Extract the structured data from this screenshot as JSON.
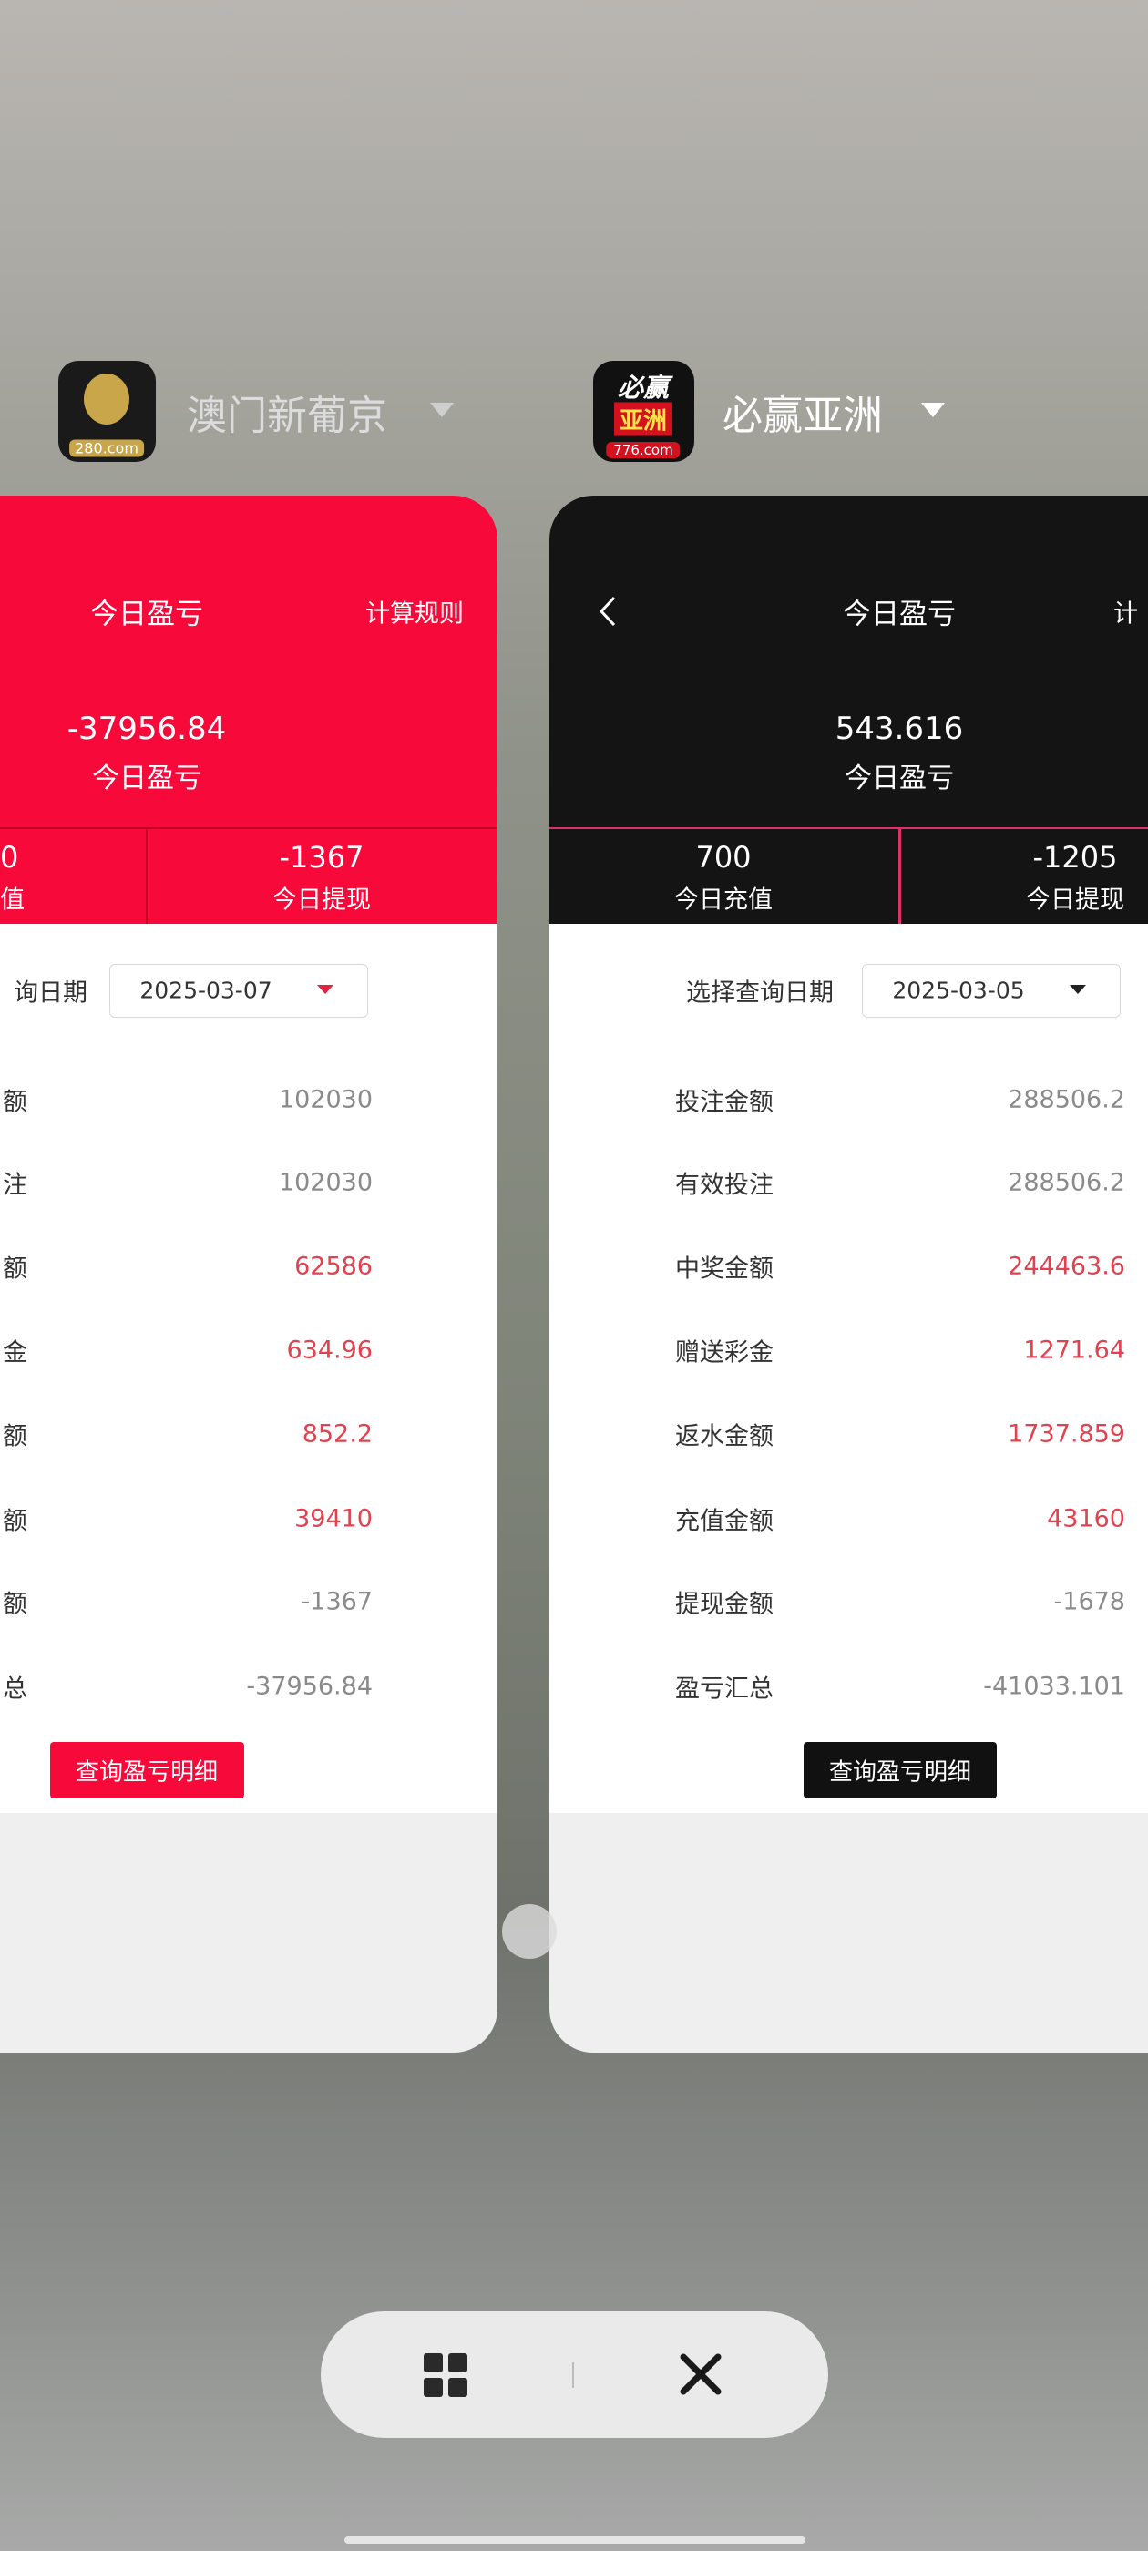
{
  "apps": [
    {
      "name": "澳门新葡京",
      "logo_text": "280.com",
      "header": {
        "title": "今日盈亏",
        "rule": "计算规则",
        "amount": "-37956.84",
        "amount_label": "今日盈亏"
      },
      "stats": [
        {
          "value": "0",
          "label": "值"
        },
        {
          "value": "-1367",
          "label": "今日提现"
        }
      ],
      "date_label": "询日期",
      "date": "2025-03-07",
      "rows": [
        {
          "label": "额",
          "value": "102030",
          "color": "#8a8a8a"
        },
        {
          "label": "注",
          "value": "102030",
          "color": "#8a8a8a"
        },
        {
          "label": "额",
          "value": "62586",
          "color": "#e0434f"
        },
        {
          "label": "金",
          "value": "634.96",
          "color": "#e0434f"
        },
        {
          "label": "额",
          "value": "852.2",
          "color": "#e0434f"
        },
        {
          "label": "额",
          "value": "39410",
          "color": "#e0434f"
        },
        {
          "label": "额",
          "value": "-1367",
          "color": "#8a8a8a"
        },
        {
          "label": "总",
          "value": "-37956.84",
          "color": "#8a8a8a"
        }
      ],
      "button": "查询盈亏明细"
    },
    {
      "name": "必赢亚洲",
      "logo_text": "776.com",
      "logo_title": [
        "必赢",
        "亚洲"
      ],
      "header": {
        "title": "今日盈亏",
        "rule": "计",
        "amount": "543.616",
        "amount_label": "今日盈亏"
      },
      "stats": [
        {
          "value": "700",
          "label": "今日充值"
        },
        {
          "value": "-1205",
          "label": "今日提现"
        }
      ],
      "date_label": "选择查询日期",
      "date": "2025-03-05",
      "rows": [
        {
          "label": "投注金额",
          "value": "288506.2",
          "color": "#8a8a8a"
        },
        {
          "label": "有效投注",
          "value": "288506.2",
          "color": "#8a8a8a"
        },
        {
          "label": "中奖金额",
          "value": "244463.6",
          "color": "#e0434f"
        },
        {
          "label": "赠送彩金",
          "value": "1271.64",
          "color": "#e0434f"
        },
        {
          "label": "返水金额",
          "value": "1737.859",
          "color": "#e0434f"
        },
        {
          "label": "充值金额",
          "value": "43160",
          "color": "#e0434f"
        },
        {
          "label": "提现金额",
          "value": "-1678",
          "color": "#8a8a8a"
        },
        {
          "label": "盈亏汇总",
          "value": "-41033.101",
          "color": "#8a8a8a"
        }
      ],
      "button": "查询盈亏明细"
    }
  ]
}
